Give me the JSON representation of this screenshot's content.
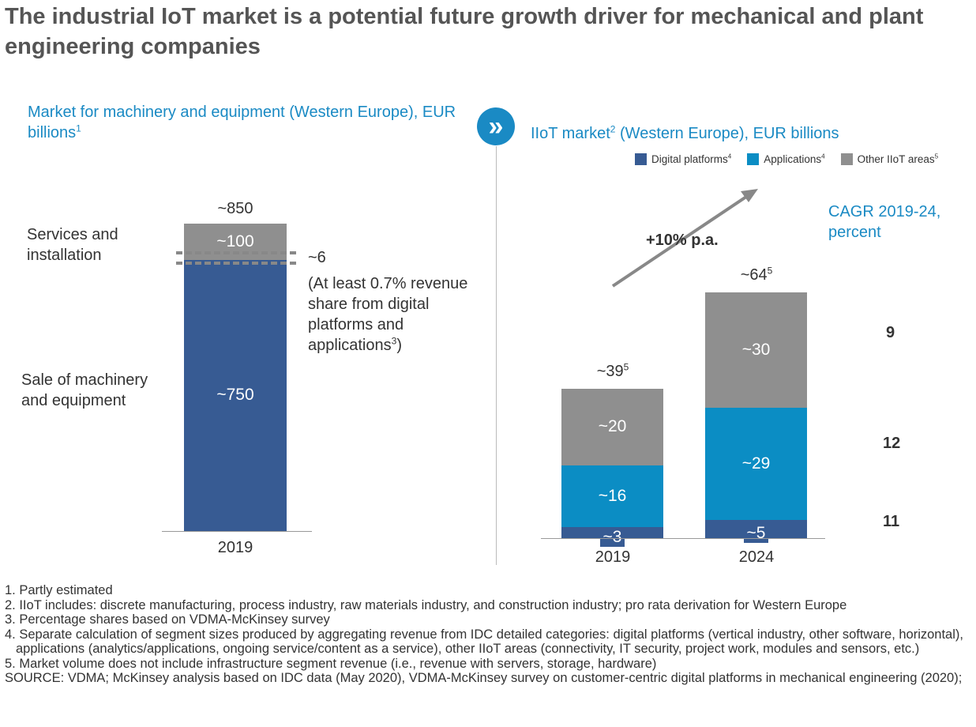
{
  "title": "The industrial IoT market is a potential future growth driver for mechanical and plant engineering companies",
  "colors": {
    "digital_platforms": "#375b93",
    "applications": "#0b8dc4",
    "other": "#8f8f8f",
    "accent": "#1a8ac4"
  },
  "left": {
    "subtitle": "Market for machinery and equipment (Western Europe), EUR billions",
    "subtitle_sup": "1",
    "label_services": "Services and installation",
    "label_sale": "Sale of machinery and equipment",
    "annotation_value": "~6",
    "annotation_text": "(At least 0.7% revenue share from digital platforms and applications",
    "annotation_sup": "3",
    "annotation_close": ")"
  },
  "right": {
    "subtitle_a": "IIoT market",
    "subtitle_sup": "2",
    "subtitle_b": " (Western Europe), EUR billions",
    "icon": "double-chevron-right",
    "growth_label": "+10% p.a.",
    "cagr_title": "CAGR 2019-24, percent",
    "cagr_values": [
      "9",
      "12",
      "11"
    ]
  },
  "chart_data": [
    {
      "type": "bar",
      "stacked": true,
      "categories": [
        "2019"
      ],
      "series": [
        {
          "name": "Sale of machinery and equipment",
          "values": [
            750
          ],
          "labels": [
            "~750"
          ]
        },
        {
          "name": "Services and installation",
          "values": [
            100
          ],
          "labels": [
            "~100"
          ]
        }
      ],
      "totals": [
        "~850"
      ]
    },
    {
      "type": "bar",
      "stacked": true,
      "categories": [
        "2019",
        "2024"
      ],
      "series": [
        {
          "name": "Digital platforms",
          "sup": "4",
          "values": [
            3,
            5
          ],
          "labels": [
            "~3",
            "~5"
          ]
        },
        {
          "name": "Applications",
          "sup": "4",
          "values": [
            16,
            29
          ],
          "labels": [
            "~16",
            "~29"
          ]
        },
        {
          "name": "Other IIoT areas",
          "sup": "5",
          "values": [
            20,
            30
          ],
          "labels": [
            "~20",
            "~30"
          ]
        }
      ],
      "totals": [
        "~39",
        "~64"
      ],
      "totals_sup": "5",
      "legend": "top-right"
    }
  ],
  "footnotes": [
    "1. Partly estimated",
    "2. IIoT includes: discrete manufacturing, process industry, raw materials industry, and construction industry; pro rata derivation for Western Europe",
    "3. Percentage shares based on VDMA-McKinsey survey",
    "4. Separate calculation of segment sizes produced by aggregating revenue from IDC detailed categories: digital platforms (vertical industry, other software, horizontal), applications (analytics/applications, ongoing service/content as a service), other IIoT areas (connectivity, IT security, project work, modules and sensors, etc.)",
    "5. Market volume does not include infrastructure segment revenue (i.e., revenue with servers, storage, hardware)",
    "SOURCE: VDMA; McKinsey analysis based on IDC data (May 2020), VDMA-McKinsey survey on customer-centric digital platforms in mechanical engineering (2020);"
  ]
}
